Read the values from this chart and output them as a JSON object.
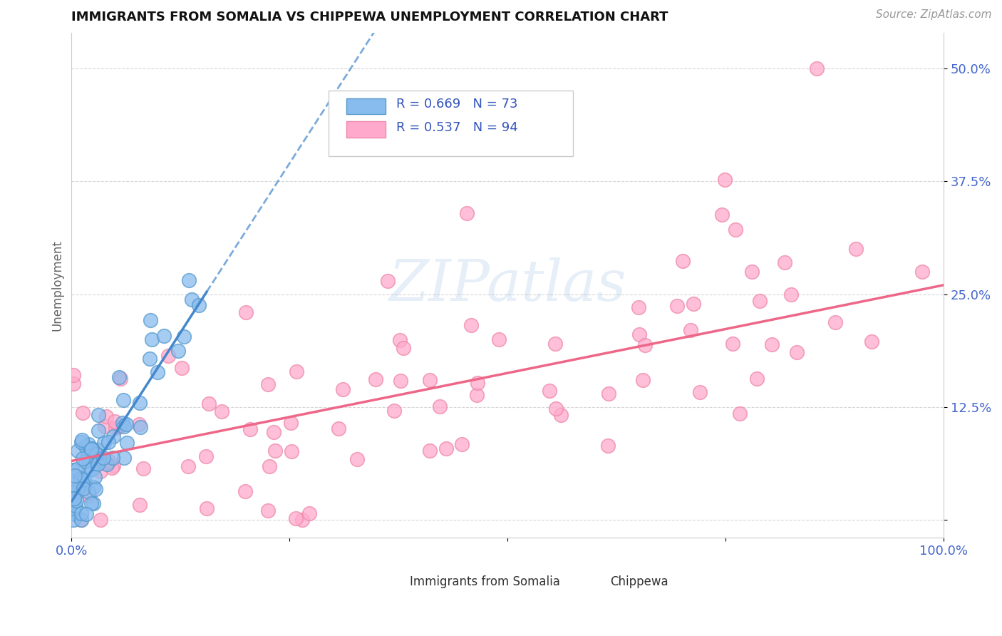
{
  "title": "IMMIGRANTS FROM SOMALIA VS CHIPPEWA UNEMPLOYMENT CORRELATION CHART",
  "source": "Source: ZipAtlas.com",
  "ylabel": "Unemployment",
  "xlim": [
    0.0,
    1.0
  ],
  "ylim": [
    -0.02,
    0.54
  ],
  "ytick_positions": [
    0.0,
    0.125,
    0.25,
    0.375,
    0.5
  ],
  "ytick_labels": [
    "",
    "12.5%",
    "25.0%",
    "37.5%",
    "50.0%"
  ],
  "xtick_positions": [
    0.0,
    0.25,
    0.5,
    0.75,
    1.0
  ],
  "xtick_labels": [
    "0.0%",
    "",
    "",
    "",
    "100.0%"
  ],
  "watermark": "ZIPatlas",
  "series1_color": "#88bbee",
  "series1_edge": "#5599cc",
  "series2_color": "#ffaacc",
  "series2_edge": "#ee88aa",
  "trend1_color": "#4488cc",
  "trend2_color": "#ee6688",
  "background_color": "#ffffff",
  "grid_color": "#cccccc",
  "title_color": "#111111",
  "axis_tick_color": "#4466cc",
  "legend_text_color": "#3355bb",
  "somalia_intercept": 0.02,
  "somalia_slope": 1.5,
  "chippewa_intercept": 0.065,
  "chippewa_slope": 0.195
}
